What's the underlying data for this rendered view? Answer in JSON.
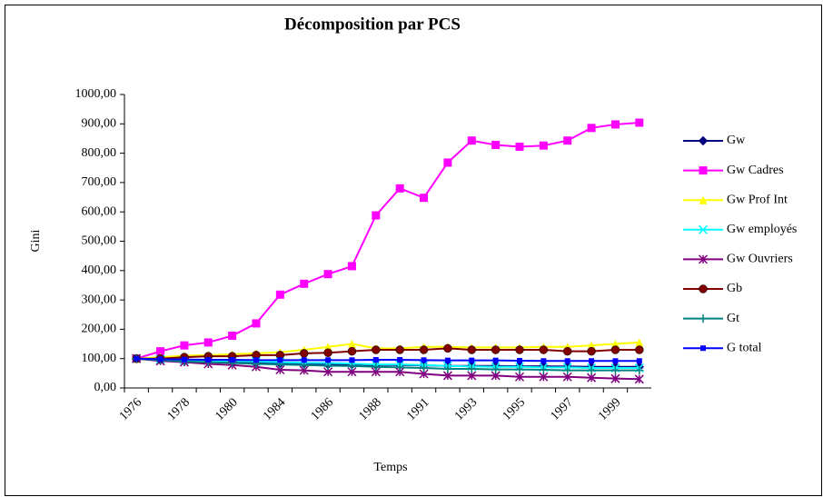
{
  "chart_data": {
    "type": "line",
    "title": "Décomposition par PCS",
    "x_label": "Temps",
    "y_label": "Gini",
    "categories": [
      "1976",
      null,
      "1978",
      null,
      "1980",
      null,
      "1984",
      null,
      "1986",
      null,
      "1988",
      null,
      "1991",
      null,
      "1993",
      null,
      "1995",
      null,
      "1997",
      null,
      "1999",
      null
    ],
    "ylim": [
      0,
      1000
    ],
    "yticks": [
      {
        "value": 0,
        "label": "0,00"
      },
      {
        "value": 100,
        "label": "100,00"
      },
      {
        "value": 200,
        "label": "200,00"
      },
      {
        "value": 300,
        "label": "300,00"
      },
      {
        "value": 400,
        "label": "400,00"
      },
      {
        "value": 500,
        "label": "500,00"
      },
      {
        "value": 600,
        "label": "600,00"
      },
      {
        "value": 700,
        "label": "700,00"
      },
      {
        "value": 800,
        "label": "800,00"
      },
      {
        "value": 900,
        "label": "900,00"
      },
      {
        "value": 1000,
        "label": "1000,00"
      }
    ],
    "legend": "right",
    "series": [
      {
        "name": "Gw",
        "color": "#000080",
        "marker": "diamond",
        "values": [
          100,
          95,
          92,
          90,
          88,
          85,
          83,
          82,
          80,
          80,
          78,
          78,
          77,
          75,
          75,
          75,
          74,
          74,
          73,
          72,
          72,
          72
        ]
      },
      {
        "name": "Gw Cadres",
        "color": "#ff00ff",
        "marker": "square",
        "values": [
          100,
          125,
          145,
          155,
          178,
          220,
          318,
          355,
          388,
          415,
          588,
          680,
          648,
          768,
          843,
          828,
          822,
          826,
          843,
          886,
          898,
          904
        ]
      },
      {
        "name": "Gw Prof Int",
        "color": "#ffff00",
        "marker": "triangle",
        "values": [
          100,
          105,
          110,
          112,
          115,
          118,
          122,
          130,
          140,
          150,
          135,
          135,
          140,
          140,
          138,
          138,
          138,
          140,
          140,
          145,
          150,
          155
        ]
      },
      {
        "name": "Gw employés",
        "color": "#00ffff",
        "marker": "x",
        "values": [
          100,
          98,
          95,
          93,
          92,
          90,
          88,
          86,
          85,
          83,
          80,
          80,
          78,
          75,
          73,
          72,
          72,
          70,
          70,
          68,
          68,
          68
        ]
      },
      {
        "name": "Gw Ouvriers",
        "color": "#800080",
        "marker": "star",
        "values": [
          100,
          92,
          88,
          82,
          78,
          72,
          62,
          60,
          55,
          55,
          55,
          55,
          48,
          42,
          42,
          42,
          38,
          38,
          38,
          35,
          32,
          30
        ]
      },
      {
        "name": "Gb",
        "color": "#800000",
        "marker": "circle",
        "values": [
          100,
          100,
          105,
          108,
          108,
          112,
          112,
          118,
          120,
          125,
          130,
          130,
          130,
          135,
          130,
          130,
          130,
          130,
          125,
          125,
          130,
          130
        ]
      },
      {
        "name": "Gt",
        "color": "#008080",
        "marker": "plus",
        "values": [
          100,
          95,
          90,
          88,
          85,
          82,
          80,
          78,
          76,
          75,
          72,
          70,
          68,
          65,
          65,
          63,
          63,
          62,
          60,
          60,
          60,
          60
        ]
      },
      {
        "name": "G total",
        "color": "#0000ff",
        "marker": "smallsquare",
        "values": [
          100,
          98,
          97,
          96,
          96,
          95,
          95,
          95,
          95,
          95,
          96,
          96,
          95,
          94,
          94,
          94,
          93,
          92,
          92,
          92,
          92,
          92
        ]
      }
    ]
  }
}
